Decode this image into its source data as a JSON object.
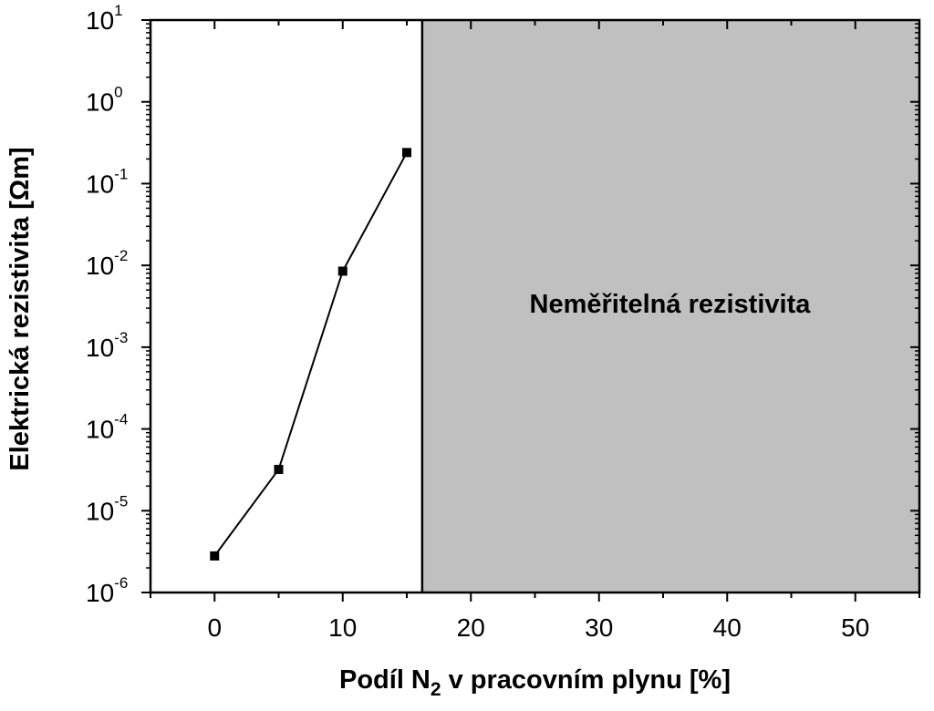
{
  "chart_data": {
    "type": "line",
    "title": "",
    "xlabel": {
      "prefix": "Podíl N",
      "subscript": "2",
      "suffix": " v pracovním plynu [%]"
    },
    "ylabel": "Elektrická rezistivita [Ωm]",
    "xlim": [
      -5,
      55
    ],
    "ylim": [
      1e-06,
      10
    ],
    "yscale": "log",
    "grid": false,
    "x_ticks": [
      0,
      10,
      20,
      30,
      40,
      50
    ],
    "y_ticks": [
      {
        "base": "10",
        "exp": "1"
      },
      {
        "base": "10",
        "exp": "0"
      },
      {
        "base": "10",
        "exp": "-1"
      },
      {
        "base": "10",
        "exp": "-2"
      },
      {
        "base": "10",
        "exp": "-3"
      },
      {
        "base": "10",
        "exp": "-4"
      },
      {
        "base": "10",
        "exp": "-5"
      },
      {
        "base": "10",
        "exp": "-6"
      }
    ],
    "series": [
      {
        "x": [
          0,
          5,
          10,
          15
        ],
        "y": [
          2.8e-06,
          3.2e-05,
          0.0085,
          0.24
        ]
      }
    ],
    "shaded_region": {
      "x_from": 16.2,
      "x_to": 55,
      "color": "#c0c0c0",
      "label": "Neměřitelná rezistivita"
    },
    "colors": {
      "line": "#000000",
      "marker": "#000000",
      "shade": "#c0c0c0"
    }
  }
}
